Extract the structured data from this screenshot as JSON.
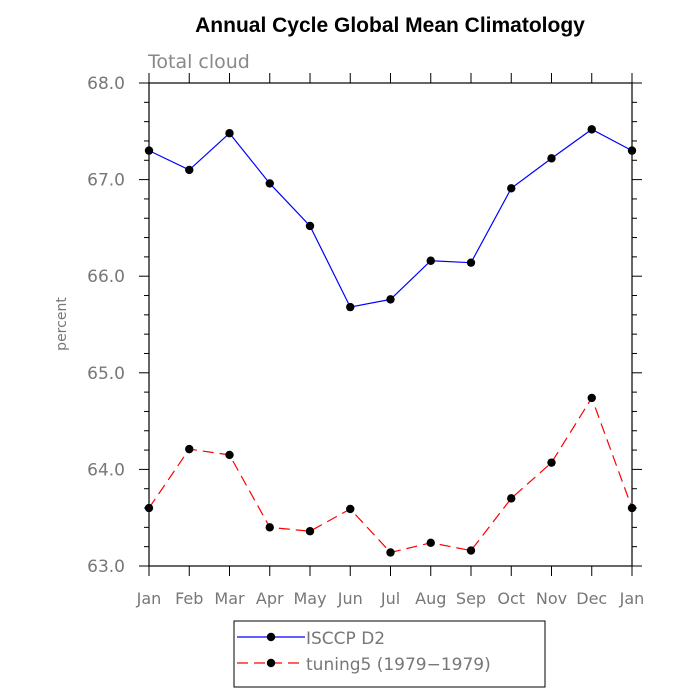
{
  "chart_data": {
    "type": "line",
    "title": "Annual Cycle Global Mean Climatology",
    "subtitle": "Total cloud",
    "ylabel": "percent",
    "xlabel": "",
    "categories": [
      "Jan",
      "Feb",
      "Mar",
      "Apr",
      "May",
      "Jun",
      "Jul",
      "Aug",
      "Sep",
      "Oct",
      "Nov",
      "Dec",
      "Jan"
    ],
    "ylim": [
      63.0,
      68.0
    ],
    "yticks": [
      "63.0",
      "64.0",
      "65.0",
      "66.0",
      "67.0",
      "68.0"
    ],
    "legend_position": "bottom-center",
    "series": [
      {
        "name": "ISCCP D2",
        "color": "#0000ff",
        "dash": "solid",
        "values": [
          67.3,
          67.1,
          67.48,
          66.96,
          66.52,
          65.68,
          65.76,
          66.16,
          66.14,
          66.91,
          67.22,
          67.52,
          67.3
        ]
      },
      {
        "name": "tuning5 (1979−1979)",
        "color": "#ff0000",
        "dash": "dashed",
        "values": [
          63.6,
          64.21,
          64.15,
          63.4,
          63.36,
          63.59,
          63.14,
          63.24,
          63.16,
          63.7,
          64.07,
          64.74,
          63.6
        ]
      }
    ]
  }
}
